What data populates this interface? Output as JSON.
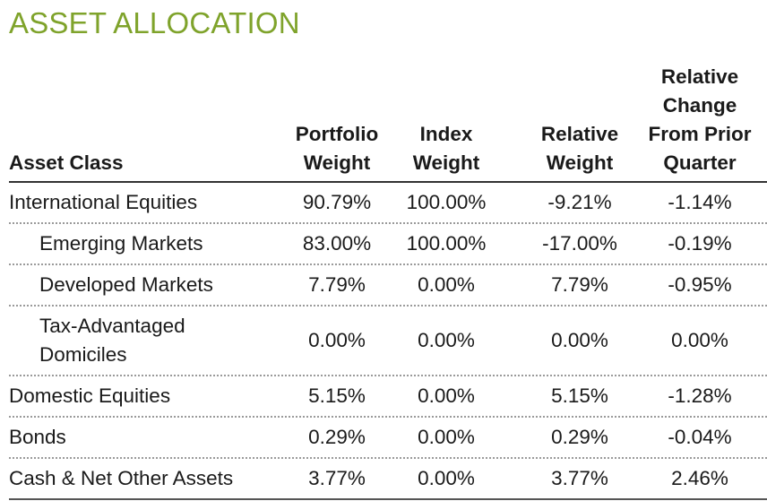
{
  "title": "ASSET ALLOCATION",
  "columns": {
    "asset_class": "Asset Class",
    "portfolio_weight": "Portfolio\nWeight",
    "index_weight": "Index\nWeight",
    "relative_weight": "Relative\nWeight",
    "relative_change": "Relative\nChange\nFrom Prior\nQuarter"
  },
  "rows": [
    {
      "label": "International Equities",
      "portfolio": "90.79%",
      "index": "100.00%",
      "relative": "-9.21%",
      "change": "-1.14%"
    },
    {
      "label": "Emerging Markets",
      "portfolio": "83.00%",
      "index": "100.00%",
      "relative": "-17.00%",
      "change": "-0.19%"
    },
    {
      "label": "Developed Markets",
      "portfolio": "7.79%",
      "index": "0.00%",
      "relative": "7.79%",
      "change": "-0.95%"
    },
    {
      "label": "Tax-Advantaged\nDomiciles",
      "portfolio": "0.00%",
      "index": "0.00%",
      "relative": "0.00%",
      "change": "0.00%"
    },
    {
      "label": "Domestic Equities",
      "portfolio": "5.15%",
      "index": "0.00%",
      "relative": "5.15%",
      "change": "-1.28%"
    },
    {
      "label": "Bonds",
      "portfolio": "0.29%",
      "index": "0.00%",
      "relative": "0.29%",
      "change": "-0.04%"
    },
    {
      "label": "Cash & Net Other Assets",
      "portfolio": "3.77%",
      "index": "0.00%",
      "relative": "3.77%",
      "change": "2.46%"
    }
  ]
}
